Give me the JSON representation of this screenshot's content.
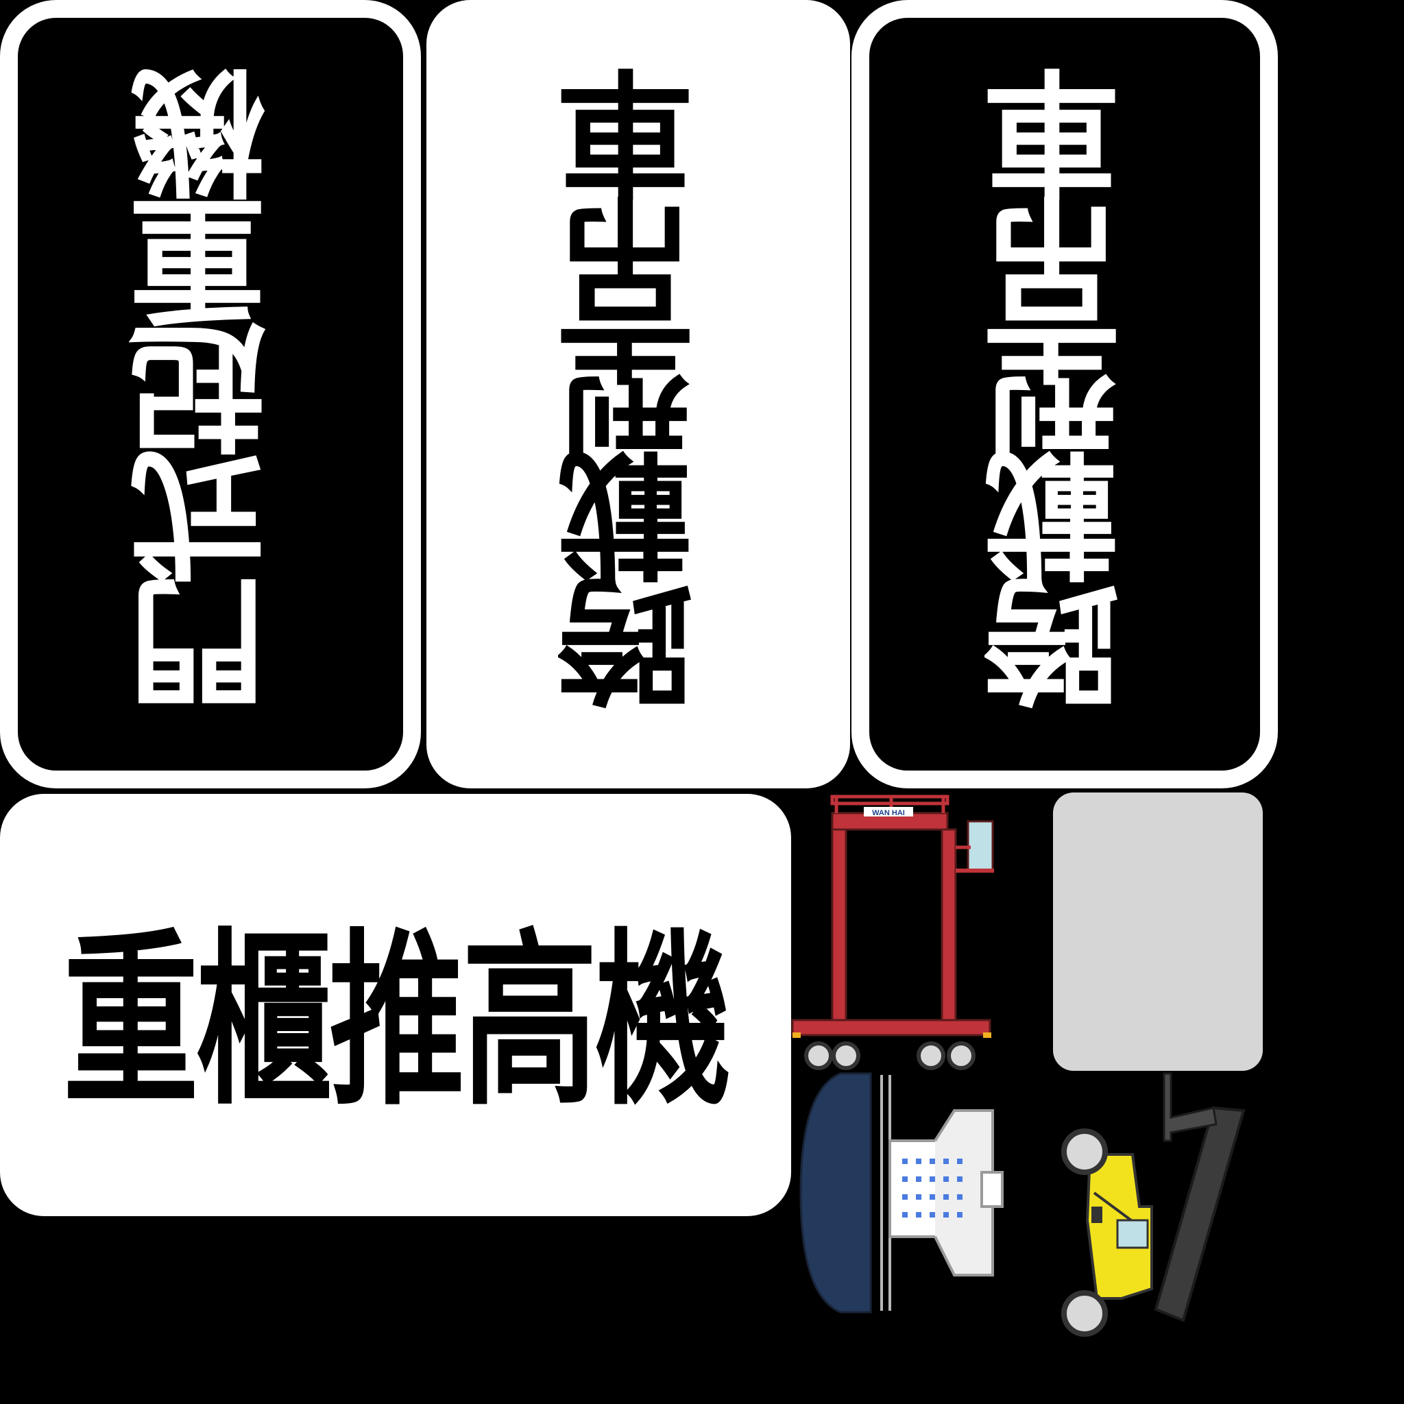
{
  "cards": [
    {
      "label": "門式起重機"
    },
    {
      "label": "跨載型吊車"
    },
    {
      "label": "跨載型吊車"
    },
    {
      "label": "重櫃推高機"
    }
  ],
  "illustrations": {
    "crane": {
      "brand": "WAN HAI",
      "icon": "gantry-crane-icon",
      "accent": "#c0333a"
    },
    "straddle": {
      "icon": "straddle-carrier-icon",
      "accent": "#233a5c"
    },
    "stacker": {
      "icon": "reach-stacker-icon",
      "accent": "#f2e21d"
    }
  },
  "placeholder": {
    "color": "#d6d6d6"
  }
}
